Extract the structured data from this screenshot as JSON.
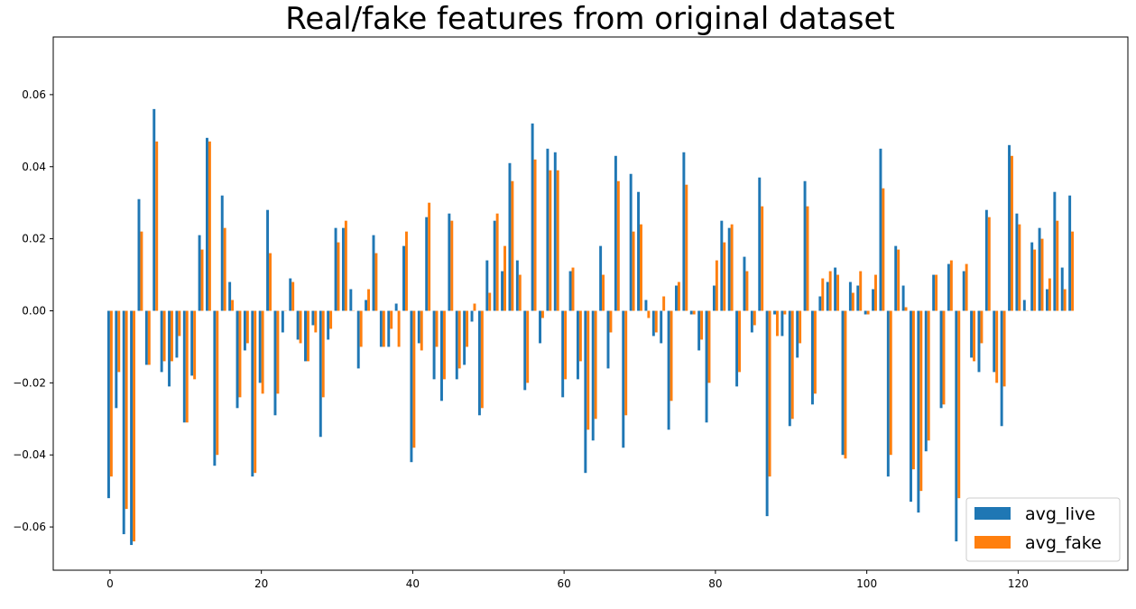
{
  "chart_data": {
    "type": "bar",
    "title": "Real/fake features from original dataset",
    "xlabel": "",
    "ylabel": "",
    "xlim": [
      -7.5,
      134.5
    ],
    "ylim": [
      -0.072,
      0.076
    ],
    "xticks": [
      0,
      20,
      40,
      60,
      80,
      100,
      120
    ],
    "xtick_labels": [
      "0",
      "20",
      "40",
      "60",
      "80",
      "100",
      "120"
    ],
    "yticks": [
      -0.06,
      -0.04,
      -0.02,
      0.0,
      0.02,
      0.04,
      0.06
    ],
    "ytick_labels": [
      "−0.06",
      "−0.04",
      "−0.02",
      "0.00",
      "0.02",
      "0.04",
      "0.06"
    ],
    "grid": false,
    "legend_position": "lower-right",
    "series": [
      {
        "name": "avg_live",
        "color": "#1f77b4",
        "values": [
          -0.052,
          -0.027,
          -0.062,
          -0.065,
          0.031,
          -0.015,
          0.056,
          -0.017,
          -0.021,
          -0.013,
          -0.031,
          -0.018,
          0.021,
          0.048,
          -0.043,
          0.032,
          0.008,
          -0.027,
          -0.011,
          -0.046,
          -0.02,
          0.028,
          -0.029,
          -0.006,
          0.009,
          -0.008,
          -0.014,
          -0.004,
          -0.035,
          -0.008,
          0.023,
          0.023,
          0.006,
          -0.016,
          0.003,
          0.021,
          -0.01,
          -0.01,
          0.002,
          0.018,
          -0.042,
          -0.009,
          0.026,
          -0.019,
          -0.025,
          0.027,
          -0.019,
          -0.015,
          -0.003,
          -0.029,
          0.014,
          0.025,
          0.011,
          0.041,
          0.014,
          -0.022,
          0.052,
          -0.009,
          0.045,
          0.044,
          -0.024,
          0.011,
          -0.019,
          -0.045,
          -0.036,
          0.018,
          -0.016,
          0.043,
          -0.038,
          0.038,
          0.033,
          0.003,
          -0.007,
          -0.009,
          -0.033,
          0.007,
          0.044,
          -0.001,
          -0.011,
          -0.031,
          0.007,
          0.025,
          0.023,
          -0.021,
          0.015,
          -0.006,
          0.037,
          -0.057,
          -0.001,
          -0.007,
          -0.032,
          -0.013,
          0.036,
          -0.026,
          0.004,
          0.008,
          0.012,
          -0.04,
          0.008,
          0.007,
          -0.001,
          0.006,
          0.045,
          -0.046,
          0.018,
          0.007,
          -0.053,
          -0.056,
          -0.039,
          0.01,
          -0.027,
          0.013,
          -0.064,
          0.011,
          -0.013,
          -0.017,
          0.028,
          -0.017,
          -0.032,
          0.046,
          0.027,
          0.003,
          0.019,
          0.023,
          0.006,
          0.033,
          0.012,
          0.032
        ]
      },
      {
        "name": "avg_fake",
        "color": "#ff7f0e",
        "values": [
          -0.046,
          -0.017,
          -0.055,
          -0.064,
          0.022,
          -0.015,
          0.047,
          -0.014,
          -0.014,
          -0.007,
          -0.031,
          -0.019,
          0.017,
          0.047,
          -0.04,
          0.023,
          0.003,
          -0.024,
          -0.009,
          -0.045,
          -0.023,
          0.016,
          -0.023,
          0.0,
          0.008,
          -0.009,
          -0.014,
          -0.006,
          -0.024,
          -0.005,
          0.019,
          0.025,
          0.0,
          -0.01,
          0.006,
          0.016,
          -0.01,
          -0.005,
          -0.01,
          0.022,
          -0.038,
          -0.011,
          0.03,
          -0.01,
          -0.019,
          0.025,
          -0.016,
          -0.01,
          0.002,
          -0.027,
          0.005,
          0.027,
          0.018,
          0.036,
          0.01,
          -0.02,
          0.042,
          -0.002,
          0.039,
          0.039,
          -0.019,
          0.012,
          -0.014,
          -0.033,
          -0.03,
          0.01,
          -0.006,
          0.036,
          -0.029,
          0.022,
          0.024,
          -0.002,
          -0.006,
          0.004,
          -0.025,
          0.008,
          0.035,
          -0.001,
          -0.008,
          -0.02,
          0.014,
          0.019,
          0.024,
          -0.017,
          0.011,
          -0.004,
          0.029,
          -0.046,
          -0.007,
          -0.001,
          -0.03,
          -0.009,
          0.029,
          -0.023,
          0.009,
          0.011,
          0.01,
          -0.041,
          0.005,
          0.011,
          -0.001,
          0.01,
          0.034,
          -0.04,
          0.017,
          0.001,
          -0.044,
          -0.05,
          -0.036,
          0.01,
          -0.026,
          0.014,
          -0.052,
          0.013,
          -0.014,
          -0.009,
          0.026,
          -0.02,
          -0.021,
          0.043,
          0.024,
          0.0,
          0.017,
          0.02,
          0.009,
          0.025,
          0.006,
          0.022
        ]
      }
    ]
  }
}
